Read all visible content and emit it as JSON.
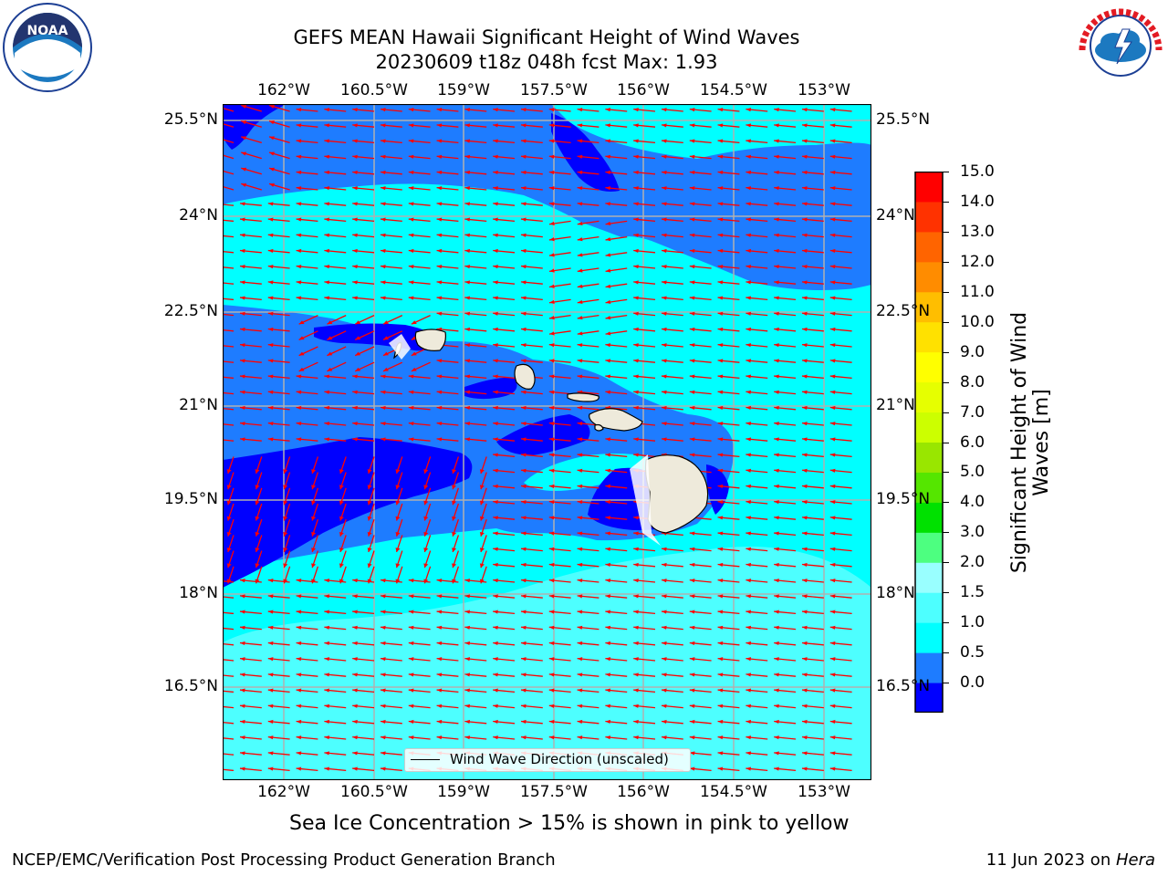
{
  "title_line1": "GEFS MEAN Hawaii Significant Height of Wind Waves",
  "title_line2": "20230609 t18z 048h fcst   Max: 1.93",
  "logos": {
    "left": "NOAA",
    "right": "NATIONAL WEATHER SERVICE"
  },
  "lon_ticks": [
    "162°W",
    "160.5°W",
    "159°W",
    "157.5°W",
    "156°W",
    "154.5°W",
    "153°W"
  ],
  "lat_ticks": [
    "25.5°N",
    "24°N",
    "22.5°N",
    "21°N",
    "19.5°N",
    "18°N",
    "16.5°N"
  ],
  "colorbar": {
    "title": "Significant Height of Wind Waves [m]",
    "ticks": [
      "15.0",
      "14.0",
      "13.0",
      "12.0",
      "11.0",
      "10.0",
      "9.0",
      "8.0",
      "7.0",
      "6.0",
      "5.0",
      "4.0",
      "3.0",
      "2.0",
      "1.5",
      "1.0",
      "0.5",
      "0.0"
    ],
    "colors": [
      "#0000ff",
      "#1e7cff",
      "#00ffff",
      "#4dffff",
      "#99ffff",
      "#4dff80",
      "#00e100",
      "#55e600",
      "#99e600",
      "#ccff00",
      "#e6ff00",
      "#ffff00",
      "#ffe100",
      "#ffbe00",
      "#ff8c00",
      "#ff6400",
      "#ff3200",
      "#ff0000"
    ]
  },
  "legend_label": "Wind Wave Direction (unscaled)",
  "subtitle": "Sea Ice Concentration > 15% is shown in pink to yellow",
  "footer_left": "NCEP/EMC/Verification Post Processing Product Generation Branch",
  "footer_right_prefix": "11 Jun 2023 on ",
  "footer_right_host": "Hera",
  "map_colors": {
    "dark": "#0000ff",
    "mid": "#1e7cff",
    "cyan": "#00ffff",
    "light": "#4dffff",
    "land": "#eeeadb",
    "arrow": "#ff0000",
    "grid": "#b0b0b0"
  }
}
